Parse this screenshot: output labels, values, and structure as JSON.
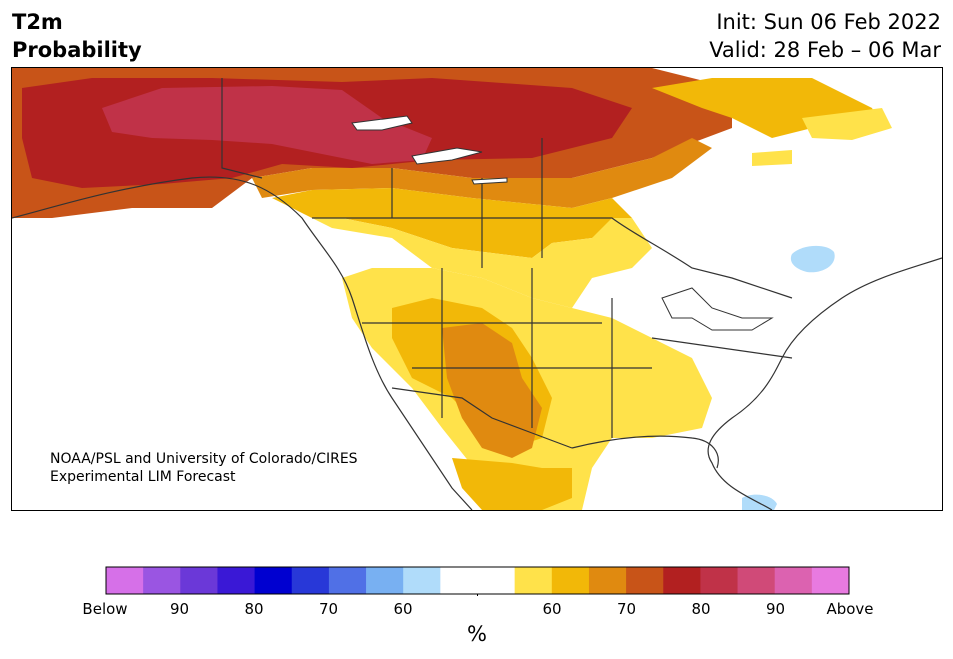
{
  "header": {
    "title_line1": "T2m",
    "title_line2": "Probability",
    "init": "Init: Sun 06 Feb 2022",
    "valid": "Valid: 28 Feb – 06 Mar"
  },
  "credit": {
    "line1": "NOAA/PSL and University of Colorado/CIRES",
    "line2": "Experimental LIM Forecast"
  },
  "colorbar": {
    "colors": [
      "#d670e8",
      "#9a55e2",
      "#6b38d8",
      "#3a18d6",
      "#0000d0",
      "#2838d8",
      "#5070e6",
      "#78b0f2",
      "#b0dcfa",
      "#ffffff",
      "#ffffff",
      "#ffe24a",
      "#f2b808",
      "#e08a10",
      "#c85418",
      "#b22020",
      "#c03248",
      "#d04a78",
      "#dc62b0",
      "#e87ae0"
    ],
    "labels": [
      "Below",
      "90",
      "80",
      "70",
      "60",
      "60",
      "70",
      "80",
      "90",
      "Above"
    ],
    "unit": "%"
  },
  "map_colors": {
    "p60_above": "#ffe24a",
    "p65_above": "#f2b808",
    "p70_above": "#e08a10",
    "p75_above": "#c85418",
    "p80_above": "#b22020",
    "p85_above": "#c03248",
    "p60_below": "#b0dcfa"
  }
}
